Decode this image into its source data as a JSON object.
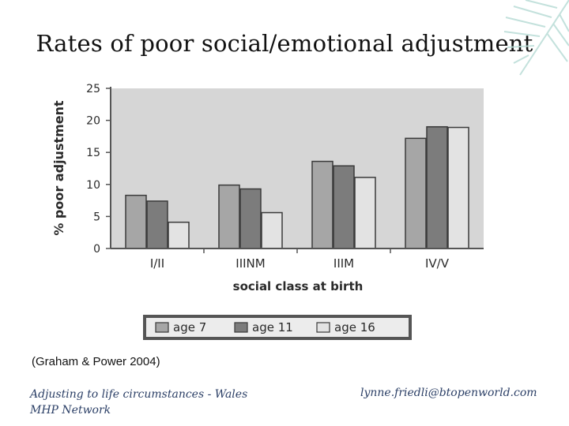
{
  "slide": {
    "title": "Rates of poor social/emotional adjustment",
    "citation": "(Graham & Power 2004)",
    "footer_left": "Adjusting to life circumstances - Wales MHP Network",
    "footer_right": "lynne.friedli@btopenworld.com"
  },
  "colors": {
    "plot_background": "#d6d6d6",
    "age7": "#a6a6a6",
    "age11": "#7c7c7c",
    "age16": "#e3e3e3",
    "footer_text": "#2b3f66"
  },
  "chart_data": {
    "type": "bar",
    "title": "",
    "xlabel": "social class at birth",
    "ylabel": "% poor adjustment",
    "ylim": [
      0,
      25
    ],
    "yticks": [
      "0",
      "5",
      "10",
      "15",
      "20",
      "25"
    ],
    "grid": false,
    "legend_placement": "bottom",
    "categories": [
      "I/II",
      "IIINM",
      "IIIM",
      "IV/V"
    ],
    "series": [
      {
        "name": "age 7",
        "values": [
          8.3,
          9.9,
          13.6,
          17.2
        ]
      },
      {
        "name": "age 11",
        "values": [
          7.4,
          9.3,
          12.9,
          19.0
        ]
      },
      {
        "name": "age 16",
        "values": [
          4.1,
          5.6,
          11.1,
          18.9
        ]
      }
    ]
  }
}
